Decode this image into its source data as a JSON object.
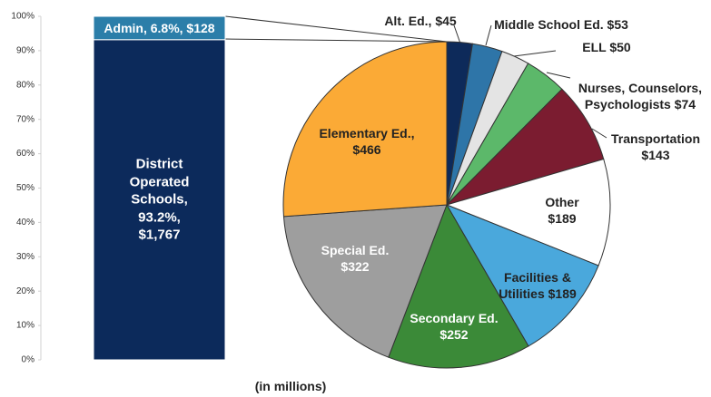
{
  "chart_data": [
    {
      "type": "bar",
      "stacked": true,
      "ylim": [
        0,
        100
      ],
      "yticks": [
        {
          "value": 0,
          "label": "0%"
        },
        {
          "value": 10,
          "label": "10%"
        },
        {
          "value": 20,
          "label": "20%"
        },
        {
          "value": 30,
          "label": "30%"
        },
        {
          "value": 40,
          "label": "40%"
        },
        {
          "value": 50,
          "label": "50%"
        },
        {
          "value": 60,
          "label": "60%"
        },
        {
          "value": 70,
          "label": "70%"
        },
        {
          "value": 80,
          "label": "80%"
        },
        {
          "value": 90,
          "label": "90%"
        },
        {
          "value": 100,
          "label": "100%"
        }
      ],
      "series": [
        {
          "color": "#0c2a5b",
          "values": [
            93.2
          ],
          "value_labels": [
            "District Operated Schools, 93.2%, $1,767"
          ]
        },
        {
          "color": "#2b7ea9",
          "values": [
            6.8
          ],
          "value_labels": [
            "Admin, 6.8%, $128"
          ]
        }
      ]
    },
    {
      "type": "pie",
      "labels": [
        "Alt. Ed., $45",
        "Middle School Ed. $53",
        "ELL $50",
        "Nurses, Counselors, Psychologists $74",
        "Transportation $143",
        "Other $189",
        "Facilities & Utilities $189",
        "Secondary Ed. $252",
        "Special Ed. $322",
        "Elementary Ed., $466"
      ],
      "values": [
        45,
        53,
        50,
        74,
        143,
        189,
        189,
        252,
        322,
        466
      ],
      "colors": [
        "#0d2a5a",
        "#2e75a8",
        "#e4e4e4",
        "#5cb86a",
        "#7b1c30",
        "#ffffff",
        "#4aa8dc",
        "#3b8a38",
        "#9e9e9e",
        "#fbaa36"
      ]
    }
  ],
  "caption": "(in millions)"
}
